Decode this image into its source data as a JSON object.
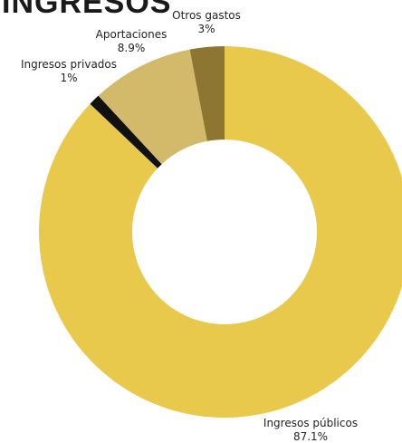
{
  "page": {
    "title": "INGRESOS"
  },
  "chart_data": {
    "type": "pie",
    "donut": true,
    "title": "INGRESOS",
    "legend": "none",
    "slices": [
      {
        "label": "Ingresos públicos",
        "value": 87.1,
        "value_label": "87.1%",
        "color": "#E8C94B"
      },
      {
        "label": "Ingresos privados",
        "value": 1,
        "value_label": "1%",
        "color": "#111111"
      },
      {
        "label": "Aportaciones",
        "value": 8.9,
        "value_label": "8.9%",
        "color": "#D3BA6B"
      },
      {
        "label": "Otros gastos",
        "value": 3,
        "value_label": "3%",
        "color": "#8C7631"
      }
    ]
  }
}
